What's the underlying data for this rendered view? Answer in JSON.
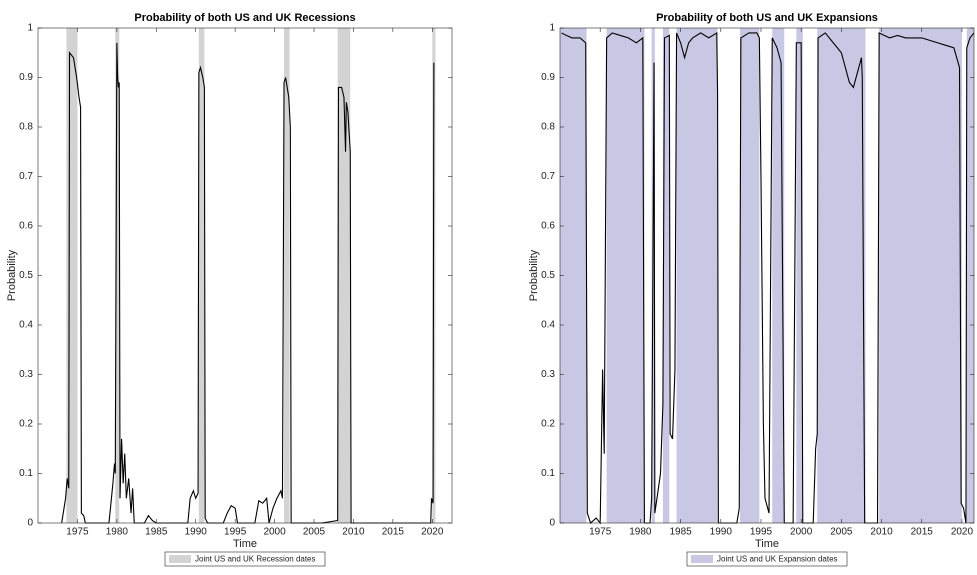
{
  "chart_data": [
    {
      "type": "line",
      "title": "Probability of both US and UK Recessions",
      "xlabel": "Time",
      "ylabel": "Probability",
      "x": [
        1973.0,
        1973.5,
        1973.7,
        1973.9,
        1974.0,
        1974.5,
        1974.9,
        1975.2,
        1975.4,
        1975.5,
        1975.8,
        1976.0,
        1979.0,
        1979.5,
        1979.7,
        1979.8,
        1980.0,
        1980.1,
        1980.2,
        1980.3,
        1980.4,
        1980.6,
        1980.8,
        1981.0,
        1981.2,
        1981.5,
        1981.8,
        1982.0,
        1982.2,
        1983.5,
        1984.0,
        1984.5,
        1985.0,
        1989.0,
        1989.3,
        1989.7,
        1990.0,
        1990.3,
        1990.4,
        1990.6,
        1990.9,
        1991.1,
        1991.2,
        1991.5,
        1993.5,
        1994.0,
        1994.5,
        1995.0,
        1995.3,
        1997.5,
        1998.0,
        1998.5,
        1999.0,
        1999.3,
        1999.8,
        2000.3,
        2000.8,
        2001.0,
        2001.2,
        2001.4,
        2001.8,
        2002.0,
        2002.1,
        2006.0,
        2008.0,
        2008.1,
        2008.5,
        2008.8,
        2009.0,
        2009.1,
        2009.3,
        2009.6,
        2009.7,
        2019.8,
        2019.9,
        2020.1,
        2020.2
      ],
      "values": [
        0,
        0.05,
        0.09,
        0.07,
        0.95,
        0.94,
        0.9,
        0.86,
        0.84,
        0.02,
        0.015,
        0,
        0,
        0.08,
        0.12,
        0.1,
        0.97,
        0.9,
        0.88,
        0.89,
        0.05,
        0.17,
        0.08,
        0.14,
        0.05,
        0.09,
        0.02,
        0.07,
        0,
        0,
        0.015,
        0.005,
        0,
        0,
        0.05,
        0.065,
        0.05,
        0.06,
        0.91,
        0.92,
        0.9,
        0.88,
        0.01,
        0,
        0,
        0.02,
        0.035,
        0.03,
        0,
        0,
        0.045,
        0.04,
        0.05,
        0,
        0.03,
        0.05,
        0.065,
        0.05,
        0.89,
        0.9,
        0.86,
        0.8,
        0,
        0,
        0.005,
        0.88,
        0.88,
        0.86,
        0.75,
        0.85,
        0.83,
        0.75,
        0,
        0,
        0.05,
        0.04,
        0.93
      ],
      "color": "#000000",
      "shaded_periods": [
        [
          1973.6,
          1975.0
        ],
        [
          1979.8,
          1980.3
        ],
        [
          1990.4,
          1991.1
        ],
        [
          2001.2,
          2001.9
        ],
        [
          2008.0,
          2009.6
        ],
        [
          2020.0,
          2020.4
        ]
      ],
      "shade_color": "#d3d3d3",
      "shade_label": "Joint US and UK Recession dates",
      "xlim": [
        1970,
        2022.5
      ],
      "ylim": [
        0,
        1
      ],
      "xticks": [
        1975,
        1980,
        1985,
        1990,
        1995,
        2000,
        2005,
        2010,
        2015,
        2020
      ],
      "yticks": [
        0,
        0.1,
        0.2,
        0.3,
        0.4,
        0.5,
        0.6,
        0.7,
        0.8,
        0.9,
        1
      ]
    },
    {
      "type": "line",
      "title": "Probability of both US and UK Expansions",
      "xlabel": "Time",
      "ylabel": "Probability",
      "x": [
        1970.2,
        1970.8,
        1971.5,
        1972.5,
        1973.2,
        1973.4,
        1973.8,
        1974.5,
        1975.0,
        1975.3,
        1975.5,
        1975.8,
        1976.5,
        1977.5,
        1978.5,
        1979.5,
        1980.3,
        1980.5,
        1981.2,
        1981.4,
        1981.7,
        1981.8,
        1982.5,
        1982.8,
        1983.0,
        1983.6,
        1983.7,
        1984.0,
        1984.3,
        1984.5,
        1985.0,
        1985.5,
        1986.0,
        1986.5,
        1987.5,
        1988.5,
        1989.5,
        1989.6,
        1989.7,
        1992.0,
        1992.3,
        1992.5,
        1993.5,
        1994.5,
        1994.8,
        1995.0,
        1995.3,
        1995.5,
        1996.0,
        1996.4,
        1997.0,
        1997.5,
        1997.9,
        1999.0,
        1999.4,
        2000.0,
        2000.2,
        2001.5,
        2001.8,
        2002.0,
        2002.1,
        2003.0,
        2004.0,
        2005.0,
        2005.5,
        2006.0,
        2006.5,
        2007.0,
        2007.5,
        2007.6,
        2007.9,
        2009.5,
        2009.7,
        2011.0,
        2012.0,
        2013.0,
        2015.0,
        2016.0,
        2017.0,
        2018.0,
        2019.0,
        2019.7,
        2019.9,
        2020.2,
        2020.5,
        2020.6,
        2021.0,
        2021.5
      ],
      "values": [
        0.99,
        0.985,
        0.98,
        0.98,
        0.97,
        0.02,
        0,
        0.01,
        0,
        0.31,
        0.14,
        0.98,
        0.99,
        0.985,
        0.98,
        0.97,
        0.98,
        0,
        0,
        0.05,
        0.93,
        0.02,
        0.1,
        0.24,
        0.98,
        0.985,
        0.18,
        0.17,
        0.31,
        0.99,
        0.97,
        0.94,
        0.97,
        0.98,
        0.99,
        0.98,
        0.99,
        0.87,
        0,
        0,
        0.03,
        0.98,
        0.99,
        0.99,
        0.98,
        0.7,
        0.2,
        0.05,
        0.02,
        0.98,
        0.96,
        0.93,
        0,
        0,
        0.97,
        0.97,
        0,
        0,
        0.15,
        0.18,
        0.98,
        0.99,
        0.97,
        0.95,
        0.92,
        0.89,
        0.88,
        0.91,
        0.94,
        0.9,
        0,
        0,
        0.99,
        0.98,
        0.985,
        0.98,
        0.98,
        0.975,
        0.97,
        0.965,
        0.96,
        0.92,
        0.04,
        0.03,
        0,
        0.96,
        0.98,
        0.99
      ],
      "color": "#000000",
      "shaded_periods": [
        [
          1970,
          1973.3
        ],
        [
          1975.8,
          1980.5
        ],
        [
          1981.4,
          1981.8
        ],
        [
          1982.8,
          1983.6
        ],
        [
          1984.5,
          1989.6
        ],
        [
          1992.4,
          1994.8
        ],
        [
          1996.4,
          1997.9
        ],
        [
          1999.4,
          2000.2
        ],
        [
          2002.0,
          2008.0
        ],
        [
          2009.7,
          2020.0
        ],
        [
          2020.6,
          2021.5
        ]
      ],
      "shade_color": "#c8c8e4",
      "shade_label": "Joint US and UK Expansion dates",
      "xlim": [
        1970,
        2021.5
      ],
      "ylim": [
        0,
        1
      ],
      "xticks": [
        1975,
        1980,
        1985,
        1990,
        1995,
        2000,
        2005,
        2010,
        2015,
        2020
      ],
      "yticks": [
        0,
        0.1,
        0.2,
        0.3,
        0.4,
        0.5,
        0.6,
        0.7,
        0.8,
        0.9,
        1
      ]
    }
  ]
}
